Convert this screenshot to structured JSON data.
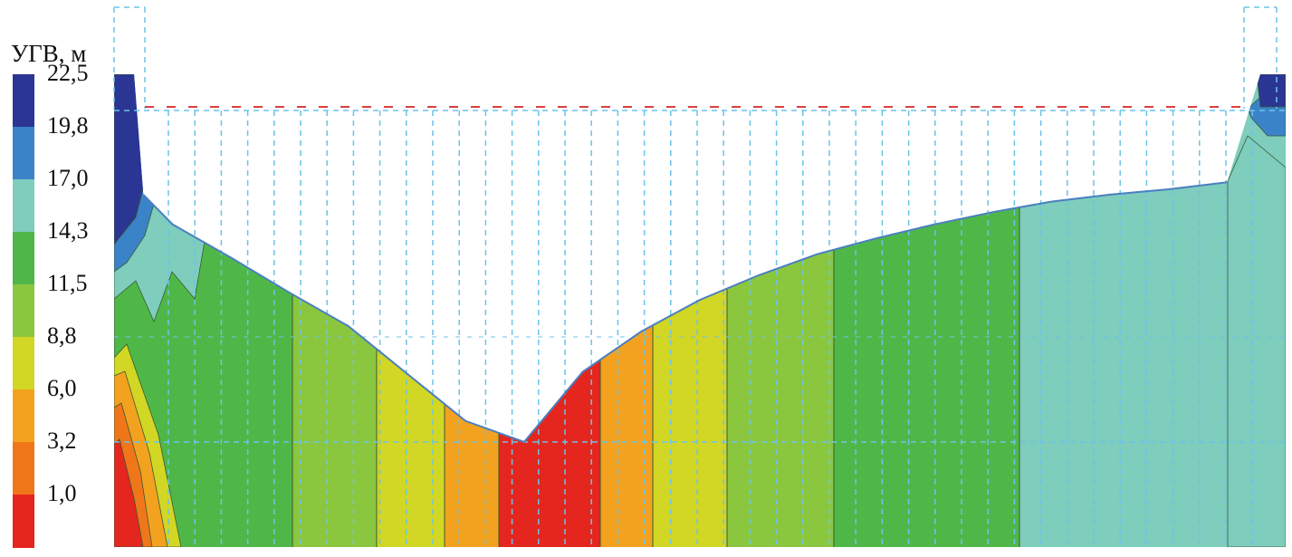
{
  "chart_data": {
    "type": "heatmap",
    "title": "",
    "legend": {
      "title": "УГВ, м",
      "ticks": [
        "1,0",
        "3,2",
        "6,0",
        "8,8",
        "11,5",
        "14,3",
        "17,0",
        "19,8",
        "22,5"
      ],
      "colors": [
        "#e4261e",
        "#f0761a",
        "#f3a21f",
        "#d2d624",
        "#8bc63f",
        "#4fb748",
        "#7ecdbd",
        "#3a83c8",
        "#2b3594"
      ],
      "placement": "left"
    },
    "profile": {
      "x": [
        0,
        10,
        20,
        40,
        60,
        80,
        100,
        120,
        140,
        160,
        180,
        200,
        220,
        240,
        260,
        280,
        300,
        320,
        340,
        360,
        380,
        400
      ],
      "water_table_m": [
        22.5,
        17.5,
        15.8,
        13.9,
        11.9,
        10.0,
        7.3,
        4.6,
        3.4,
        7.4,
        9.7,
        11.5,
        12.9,
        14.1,
        15.0,
        15.8,
        16.5,
        17.1,
        17.5,
        17.8,
        18.2,
        22.5
      ]
    },
    "design_level_m": 22.5
  }
}
